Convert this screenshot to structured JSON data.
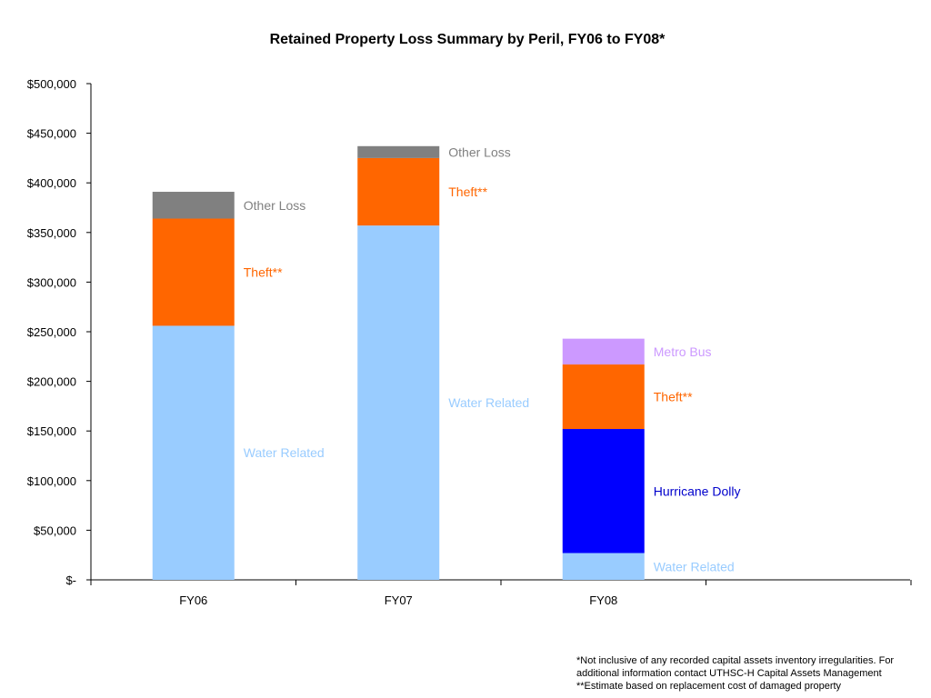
{
  "chart_data": {
    "type": "bar",
    "stacked": true,
    "title": "Retained Property Loss Summary by Peril, FY06 to FY08*",
    "xlabel": "",
    "ylabel": "",
    "ylim": [
      0,
      500000
    ],
    "y_ticks": [
      "$-",
      "$50,000",
      "$100,000",
      "$150,000",
      "$200,000",
      "$250,000",
      "$300,000",
      "$350,000",
      "$400,000",
      "$450,000",
      "$500,000"
    ],
    "y_tick_values": [
      0,
      50000,
      100000,
      150000,
      200000,
      250000,
      300000,
      350000,
      400000,
      450000,
      500000
    ],
    "categories": [
      "FY06",
      "FY07",
      "FY08"
    ],
    "bars": [
      {
        "category": "FY06",
        "segments": [
          {
            "name": "Water Related",
            "value": 256000,
            "color": "#99ccff"
          },
          {
            "name": "Theft**",
            "value": 108000,
            "color": "#ff6600"
          },
          {
            "name": "Other Loss",
            "value": 27000,
            "color": "#808080"
          }
        ]
      },
      {
        "category": "FY07",
        "segments": [
          {
            "name": "Water Related",
            "value": 357000,
            "color": "#99ccff"
          },
          {
            "name": "Theft**",
            "value": 68000,
            "color": "#ff6600"
          },
          {
            "name": "Other Loss",
            "value": 12000,
            "color": "#808080"
          }
        ]
      },
      {
        "category": "FY08",
        "segments": [
          {
            "name": "Water Related",
            "value": 27000,
            "color": "#99ccff"
          },
          {
            "name": "Hurricane Dolly",
            "value": 125000,
            "color": "#0000ff"
          },
          {
            "name": "Theft**",
            "value": 65000,
            "color": "#ff6600"
          },
          {
            "name": "Metro Bus",
            "value": 26000,
            "color": "#cc99ff"
          }
        ]
      }
    ],
    "label_colors": {
      "Water Related": "#99ccff",
      "Theft**": "#ff6600",
      "Other Loss": "#808080",
      "Hurricane Dolly": "#0000cc",
      "Metro Bus": "#cc99ff"
    },
    "grid": false,
    "legend": "none"
  },
  "footnotes": [
    "*Not inclusive of any recorded capital assets inventory irregularities.  For",
    "additional information contact UTHSC-H Capital Assets Management",
    "**Estimate based on replacement cost of damaged property"
  ]
}
